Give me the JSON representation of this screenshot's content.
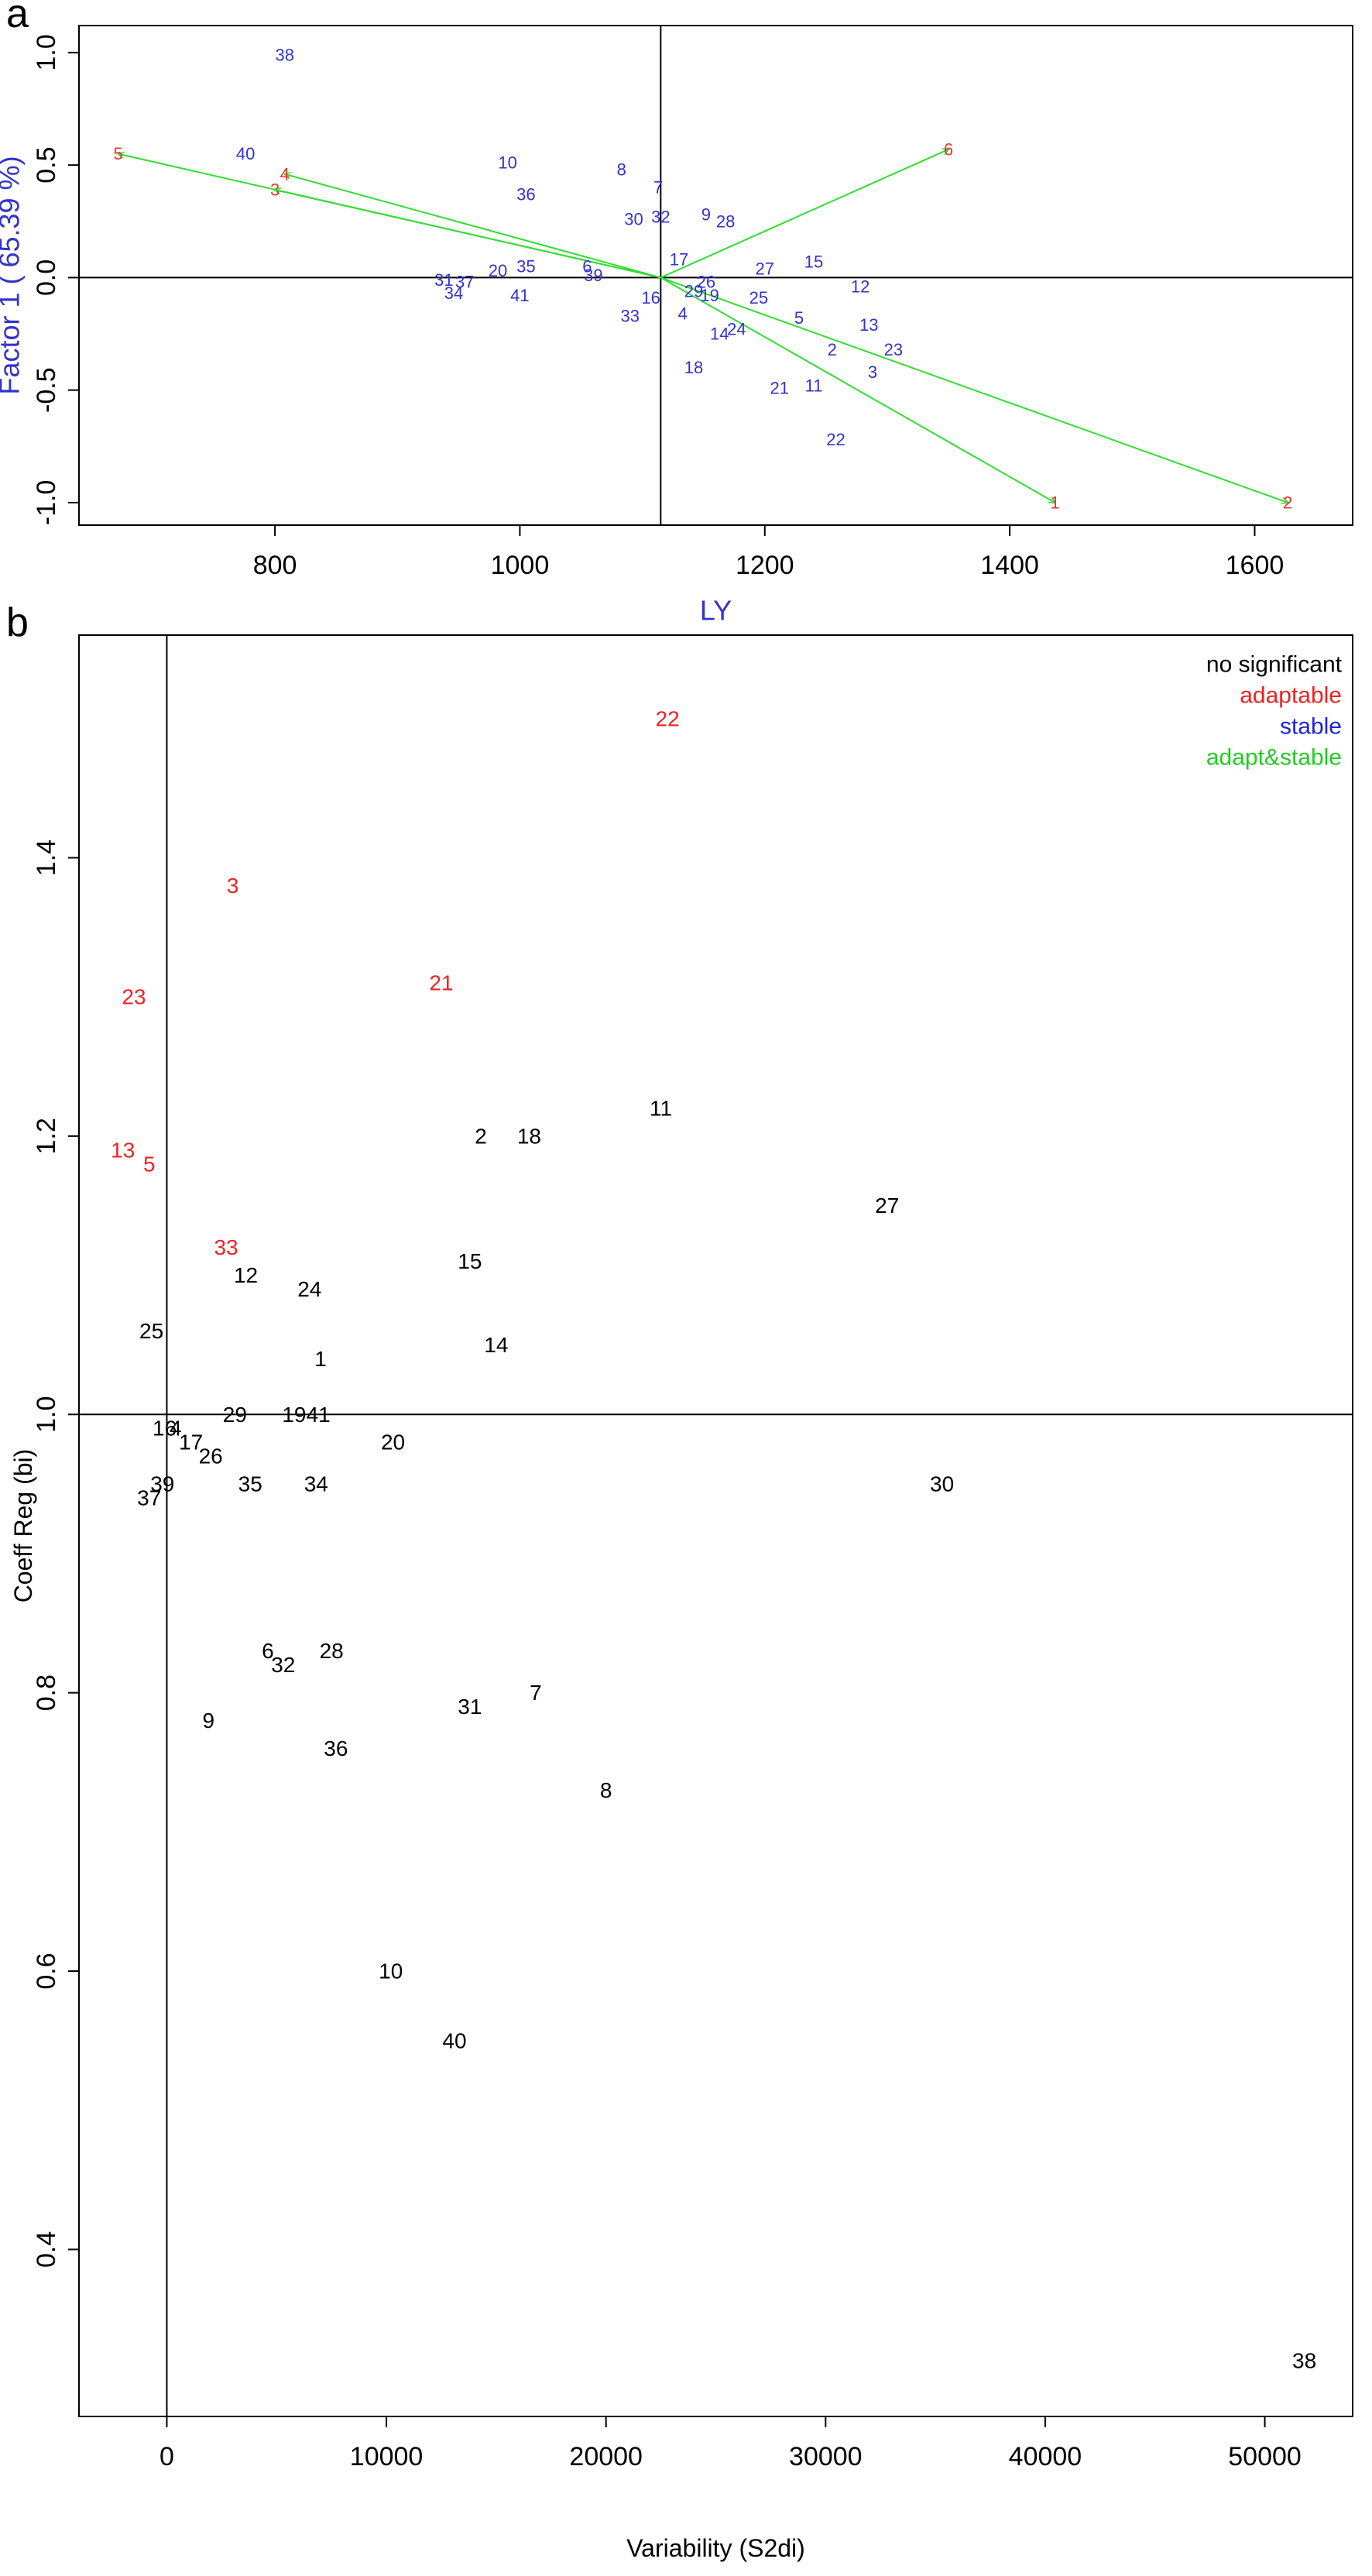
{
  "chart_data": [
    {
      "type": "scatter",
      "panel_label": "a",
      "title": "",
      "xlabel": "LY",
      "ylabel": "Factor 1 ( 65.39 %)",
      "xlim": [
        640,
        1680
      ],
      "ylim": [
        -1.1,
        1.12
      ],
      "xticks": [
        800,
        1000,
        1200,
        1400,
        1600
      ],
      "yticks": [
        1.0,
        0.5,
        0.0,
        -0.5,
        -1.0
      ],
      "ytick_labels": [
        "1.0",
        "0.5",
        "0.0",
        "-0.5",
        "-1.0"
      ],
      "reference_lines": {
        "x": 1115,
        "y": 0
      },
      "arrow_origin": [
        1115,
        0
      ],
      "arrow_color": "#33dd33",
      "point_color": "#3333cc",
      "vector_label_color": "#ee3333",
      "axis_label_color": "#3333cc",
      "vectors": [
        {
          "label": "1",
          "x": 1437,
          "y": -1.0
        },
        {
          "label": "2",
          "x": 1627,
          "y": -1.0
        },
        {
          "label": "3",
          "x": 800,
          "y": 0.39
        },
        {
          "label": "4",
          "x": 808,
          "y": 0.46
        },
        {
          "label": "5",
          "x": 672,
          "y": 0.55
        },
        {
          "label": "6",
          "x": 1350,
          "y": 0.57
        }
      ],
      "points": [
        {
          "label": "38",
          "x": 808,
          "y": 0.99
        },
        {
          "label": "40",
          "x": 776,
          "y": 0.55
        },
        {
          "label": "10",
          "x": 990,
          "y": 0.51
        },
        {
          "label": "8",
          "x": 1083,
          "y": 0.48
        },
        {
          "label": "7",
          "x": 1113,
          "y": 0.4
        },
        {
          "label": "36",
          "x": 1005,
          "y": 0.37
        },
        {
          "label": "30",
          "x": 1093,
          "y": 0.26
        },
        {
          "label": "32",
          "x": 1115,
          "y": 0.27
        },
        {
          "label": "9",
          "x": 1152,
          "y": 0.28
        },
        {
          "label": "28",
          "x": 1168,
          "y": 0.25
        },
        {
          "label": "17",
          "x": 1130,
          "y": 0.08
        },
        {
          "label": "27",
          "x": 1200,
          "y": 0.04
        },
        {
          "label": "15",
          "x": 1240,
          "y": 0.07
        },
        {
          "label": "35",
          "x": 1005,
          "y": 0.05
        },
        {
          "label": "6",
          "x": 1055,
          "y": 0.05
        },
        {
          "label": "20",
          "x": 982,
          "y": 0.03
        },
        {
          "label": "39",
          "x": 1060,
          "y": 0.01
        },
        {
          "label": "31",
          "x": 938,
          "y": -0.01
        },
        {
          "label": "37",
          "x": 955,
          "y": -0.02
        },
        {
          "label": "26",
          "x": 1152,
          "y": -0.02
        },
        {
          "label": "34",
          "x": 946,
          "y": -0.07
        },
        {
          "label": "41",
          "x": 1000,
          "y": -0.08
        },
        {
          "label": "16",
          "x": 1107,
          "y": -0.09
        },
        {
          "label": "29",
          "x": 1142,
          "y": -0.06
        },
        {
          "label": "19",
          "x": 1155,
          "y": -0.08
        },
        {
          "label": "25",
          "x": 1195,
          "y": -0.09
        },
        {
          "label": "12",
          "x": 1278,
          "y": -0.04
        },
        {
          "label": "33",
          "x": 1090,
          "y": -0.17
        },
        {
          "label": "4",
          "x": 1133,
          "y": -0.16
        },
        {
          "label": "5",
          "x": 1228,
          "y": -0.18
        },
        {
          "label": "13",
          "x": 1285,
          "y": -0.21
        },
        {
          "label": "24",
          "x": 1177,
          "y": -0.23
        },
        {
          "label": "14",
          "x": 1163,
          "y": -0.25
        },
        {
          "label": "2",
          "x": 1255,
          "y": -0.32
        },
        {
          "label": "23",
          "x": 1305,
          "y": -0.32
        },
        {
          "label": "3",
          "x": 1288,
          "y": -0.42
        },
        {
          "label": "18",
          "x": 1142,
          "y": -0.4
        },
        {
          "label": "21",
          "x": 1212,
          "y": -0.49
        },
        {
          "label": "11",
          "x": 1240,
          "y": -0.48
        },
        {
          "label": "22",
          "x": 1258,
          "y": -0.72
        }
      ]
    },
    {
      "type": "scatter",
      "panel_label": "b",
      "title": "",
      "xlabel": "Variability (S2di)",
      "ylabel": "Coeff Reg (bi)",
      "xlim": [
        -4000,
        54000
      ],
      "ylim": [
        0.28,
        1.56
      ],
      "xticks": [
        0,
        10000,
        20000,
        30000,
        40000,
        50000
      ],
      "yticks": [
        0.4,
        0.6,
        0.8,
        1.0,
        1.2,
        1.4
      ],
      "ytick_labels": [
        "0.4",
        "0.6",
        "0.8",
        "1.0",
        "1.2",
        "1.4"
      ],
      "reference_lines": {
        "x": 0,
        "y": 1.0
      },
      "legend_position": "top-right",
      "legend": [
        {
          "label": "no significant",
          "color": "#000000"
        },
        {
          "label": "adaptable",
          "color": "#ee2222"
        },
        {
          "label": "stable",
          "color": "#2222dd"
        },
        {
          "label": "adapt&stable",
          "color": "#22cc22"
        }
      ],
      "points": [
        {
          "label": "22",
          "x": 22800,
          "y": 1.5,
          "group": "adaptable"
        },
        {
          "label": "3",
          "x": 3000,
          "y": 1.38,
          "group": "adaptable"
        },
        {
          "label": "21",
          "x": 12500,
          "y": 1.31,
          "group": "adaptable"
        },
        {
          "label": "23",
          "x": -1500,
          "y": 1.3,
          "group": "adaptable"
        },
        {
          "label": "13",
          "x": -2000,
          "y": 1.19,
          "group": "adaptable"
        },
        {
          "label": "5",
          "x": -800,
          "y": 1.18,
          "group": "adaptable"
        },
        {
          "label": "33",
          "x": 2700,
          "y": 1.12,
          "group": "adaptable"
        },
        {
          "label": "11",
          "x": 22500,
          "y": 1.22,
          "group": "no significant"
        },
        {
          "label": "2",
          "x": 14300,
          "y": 1.2,
          "group": "no significant"
        },
        {
          "label": "18",
          "x": 16500,
          "y": 1.2,
          "group": "no significant"
        },
        {
          "label": "27",
          "x": 32800,
          "y": 1.15,
          "group": "no significant"
        },
        {
          "label": "15",
          "x": 13800,
          "y": 1.11,
          "group": "no significant"
        },
        {
          "label": "12",
          "x": 3600,
          "y": 1.1,
          "group": "no significant"
        },
        {
          "label": "24",
          "x": 6500,
          "y": 1.09,
          "group": "no significant"
        },
        {
          "label": "25",
          "x": -700,
          "y": 1.06,
          "group": "no significant"
        },
        {
          "label": "14",
          "x": 15000,
          "y": 1.05,
          "group": "no significant"
        },
        {
          "label": "1",
          "x": 7000,
          "y": 1.04,
          "group": "no significant"
        },
        {
          "label": "29",
          "x": 3100,
          "y": 1.0,
          "group": "no significant"
        },
        {
          "label": "19",
          "x": 5800,
          "y": 1.0,
          "group": "no significant"
        },
        {
          "label": "41",
          "x": 6900,
          "y": 1.0,
          "group": "no significant"
        },
        {
          "label": "16",
          "x": -100,
          "y": 0.99,
          "group": "no significant"
        },
        {
          "label": "4",
          "x": 400,
          "y": 0.99,
          "group": "no significant"
        },
        {
          "label": "17",
          "x": 1100,
          "y": 0.98,
          "group": "no significant"
        },
        {
          "label": "20",
          "x": 10300,
          "y": 0.98,
          "group": "no significant"
        },
        {
          "label": "26",
          "x": 2000,
          "y": 0.97,
          "group": "no significant"
        },
        {
          "label": "39",
          "x": -200,
          "y": 0.95,
          "group": "no significant"
        },
        {
          "label": "35",
          "x": 3800,
          "y": 0.95,
          "group": "no significant"
        },
        {
          "label": "34",
          "x": 6800,
          "y": 0.95,
          "group": "no significant"
        },
        {
          "label": "30",
          "x": 35300,
          "y": 0.95,
          "group": "no significant"
        },
        {
          "label": "37",
          "x": -800,
          "y": 0.94,
          "group": "no significant"
        },
        {
          "label": "6",
          "x": 4600,
          "y": 0.83,
          "group": "no significant"
        },
        {
          "label": "32",
          "x": 5300,
          "y": 0.82,
          "group": "no significant"
        },
        {
          "label": "28",
          "x": 7500,
          "y": 0.83,
          "group": "no significant"
        },
        {
          "label": "31",
          "x": 13800,
          "y": 0.79,
          "group": "no significant"
        },
        {
          "label": "7",
          "x": 16800,
          "y": 0.8,
          "group": "no significant"
        },
        {
          "label": "9",
          "x": 1900,
          "y": 0.78,
          "group": "no significant"
        },
        {
          "label": "36",
          "x": 7700,
          "y": 0.76,
          "group": "no significant"
        },
        {
          "label": "8",
          "x": 20000,
          "y": 0.73,
          "group": "no significant"
        },
        {
          "label": "10",
          "x": 10200,
          "y": 0.6,
          "group": "no significant"
        },
        {
          "label": "40",
          "x": 13100,
          "y": 0.55,
          "group": "no significant"
        },
        {
          "label": "38",
          "x": 51800,
          "y": 0.32,
          "group": "no significant"
        }
      ]
    }
  ]
}
